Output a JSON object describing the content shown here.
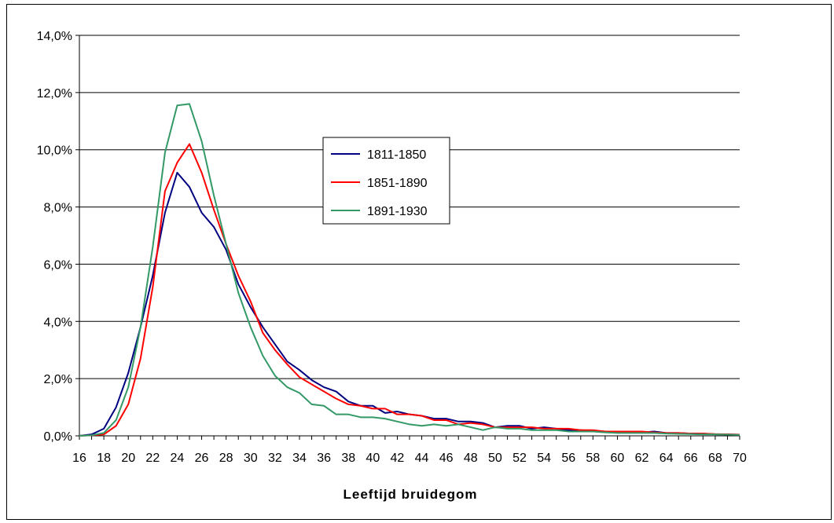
{
  "chart_data": {
    "type": "line",
    "xlabel": "Leeftijd bruidegom",
    "ylabel": "",
    "title": "",
    "xlim": [
      16,
      70
    ],
    "ylim": [
      0,
      14
    ],
    "yticks": [
      "0,0%",
      "2,0%",
      "4,0%",
      "6,0%",
      "8,0%",
      "10,0%",
      "12,0%",
      "14,0%"
    ],
    "xticks": [
      "16",
      "18",
      "20",
      "22",
      "24",
      "26",
      "28",
      "30",
      "32",
      "34",
      "36",
      "38",
      "40",
      "42",
      "44",
      "46",
      "48",
      "50",
      "52",
      "54",
      "56",
      "58",
      "60",
      "62",
      "64",
      "66",
      "68",
      "70"
    ],
    "grid": "horizontal",
    "legend_position": "inside-center",
    "x": [
      16,
      17,
      18,
      19,
      20,
      21,
      22,
      23,
      24,
      25,
      26,
      27,
      28,
      29,
      30,
      31,
      32,
      33,
      34,
      35,
      36,
      37,
      38,
      39,
      40,
      41,
      42,
      43,
      44,
      45,
      46,
      47,
      48,
      49,
      50,
      51,
      52,
      53,
      54,
      55,
      56,
      57,
      58,
      59,
      60,
      61,
      62,
      63,
      64,
      65,
      66,
      67,
      68,
      69,
      70
    ],
    "series": [
      {
        "name": "1811-1850",
        "color": "#000080",
        "values": [
          0.0,
          0.05,
          0.25,
          1.0,
          2.2,
          3.8,
          5.6,
          7.8,
          9.2,
          8.7,
          7.8,
          7.3,
          6.5,
          5.3,
          4.5,
          3.8,
          3.2,
          2.6,
          2.3,
          1.95,
          1.7,
          1.55,
          1.2,
          1.05,
          1.05,
          0.8,
          0.85,
          0.75,
          0.7,
          0.6,
          0.6,
          0.5,
          0.5,
          0.45,
          0.3,
          0.35,
          0.35,
          0.25,
          0.3,
          0.25,
          0.2,
          0.2,
          0.18,
          0.15,
          0.15,
          0.15,
          0.12,
          0.15,
          0.1,
          0.1,
          0.08,
          0.08,
          0.05,
          0.05,
          0.04
        ]
      },
      {
        "name": "1851-1890",
        "color": "#ff0000",
        "values": [
          0.0,
          0.02,
          0.05,
          0.35,
          1.1,
          2.7,
          5.2,
          8.55,
          9.55,
          10.2,
          9.2,
          7.9,
          6.7,
          5.6,
          4.7,
          3.6,
          3.0,
          2.5,
          2.05,
          1.8,
          1.55,
          1.3,
          1.1,
          1.05,
          0.95,
          0.95,
          0.75,
          0.75,
          0.7,
          0.55,
          0.55,
          0.4,
          0.45,
          0.4,
          0.3,
          0.3,
          0.3,
          0.3,
          0.25,
          0.25,
          0.25,
          0.2,
          0.2,
          0.15,
          0.15,
          0.15,
          0.15,
          0.12,
          0.1,
          0.1,
          0.08,
          0.08,
          0.06,
          0.05,
          0.04
        ]
      },
      {
        "name": "1891-1930",
        "color": "#339966",
        "values": [
          0.0,
          0.02,
          0.1,
          0.55,
          1.7,
          3.8,
          6.6,
          9.9,
          11.55,
          11.6,
          10.3,
          8.4,
          6.7,
          5.0,
          3.8,
          2.8,
          2.1,
          1.7,
          1.5,
          1.1,
          1.05,
          0.75,
          0.75,
          0.65,
          0.65,
          0.6,
          0.5,
          0.4,
          0.35,
          0.4,
          0.35,
          0.4,
          0.3,
          0.2,
          0.3,
          0.25,
          0.25,
          0.2,
          0.2,
          0.2,
          0.15,
          0.15,
          0.15,
          0.12,
          0.1,
          0.1,
          0.1,
          0.1,
          0.08,
          0.07,
          0.06,
          0.05,
          0.05,
          0.04,
          0.03
        ]
      }
    ]
  }
}
